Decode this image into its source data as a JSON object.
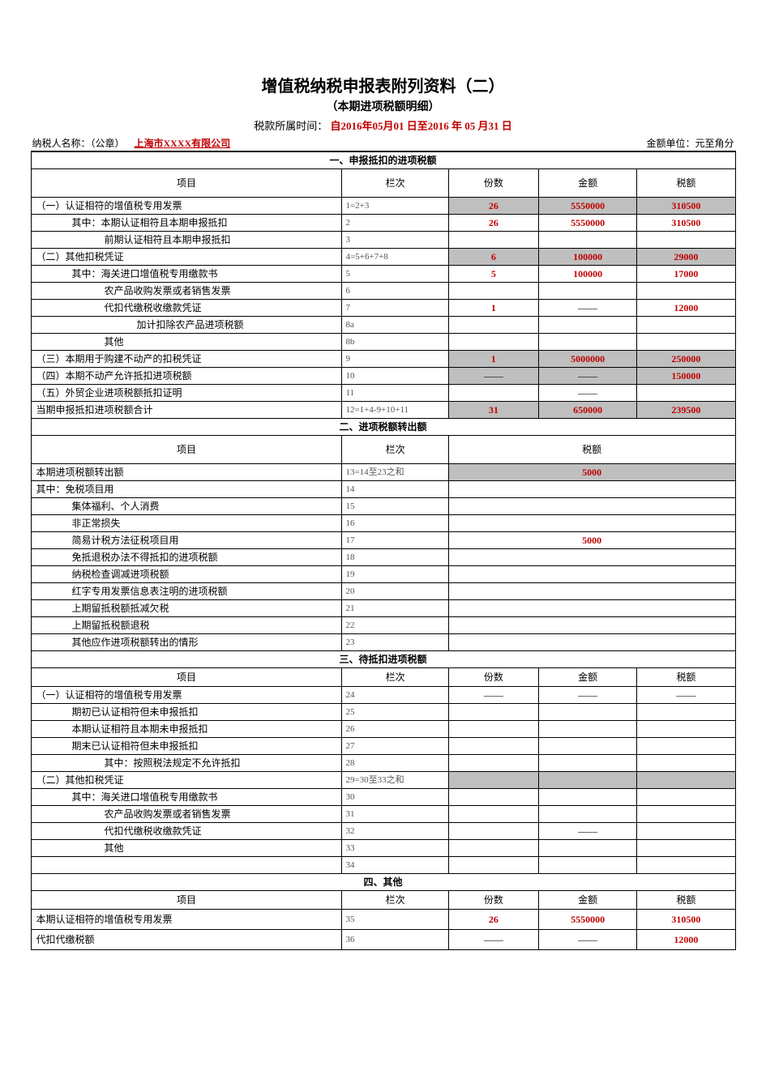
{
  "title": "增值税纳税申报表附列资料（二）",
  "subtitle": "（本期进项税额明细）",
  "period_label": "税款所属时间：",
  "period_value": "自2016年05月01 日至2016 年 05 月31 日",
  "taxpayer_label": "纳税人名称：（公章）",
  "taxpayer_name": "上海市XXXX有限公司",
  "unit_label": "金额单位：元至角分",
  "colors": {
    "red": "#c00000",
    "grey": "#bfbfbf",
    "border": "#000000"
  },
  "col_widths": {
    "item": 380,
    "lanci": 130,
    "fen": 110,
    "jine": 120,
    "shui": 120
  },
  "section1": {
    "title": "一、申报抵扣的进项税额",
    "headers": {
      "item": "项目",
      "lanci": "栏次",
      "fen": "份数",
      "jine": "金额",
      "shui": "税额"
    },
    "rows": [
      {
        "item": "（一）认证相符的增值税专用发票",
        "ind": 0,
        "lanci": "1=2+3",
        "fen": "26",
        "jine": "5550000",
        "shui": "310500",
        "grey": true
      },
      {
        "item": "其中：本期认证相符且本期申报抵扣",
        "ind": 1,
        "lanci": "2",
        "fen": "26",
        "jine": "5550000",
        "shui": "310500"
      },
      {
        "item": "前期认证相符且本期申报抵扣",
        "ind": 2,
        "lanci": "3",
        "fen": "",
        "jine": "",
        "shui": ""
      },
      {
        "item": "（二）其他扣税凭证",
        "ind": 0,
        "lanci": "4=5+6+7+8",
        "fen": "6",
        "jine": "100000",
        "shui": "29000",
        "grey": true
      },
      {
        "item": "其中：海关进口增值税专用缴款书",
        "ind": 1,
        "lanci": "5",
        "fen": "5",
        "jine": "100000",
        "shui": "17000"
      },
      {
        "item": "农产品收购发票或者销售发票",
        "ind": 2,
        "lanci": "6",
        "fen": "",
        "jine": "",
        "shui": ""
      },
      {
        "item": "代扣代缴税收缴款凭证",
        "ind": 2,
        "lanci": "7",
        "fen": "1",
        "jine": "——",
        "shui": "12000",
        "jine_dash": true
      },
      {
        "item": "加计扣除农产品进项税额",
        "ind": 3,
        "lanci": "8a",
        "fen": "",
        "jine": "",
        "shui": ""
      },
      {
        "item": "其他",
        "ind": 2,
        "lanci": "8b",
        "fen": "",
        "jine": "",
        "shui": ""
      },
      {
        "item": "（三）本期用于购建不动产的扣税凭证",
        "ind": 0,
        "lanci": "9",
        "fen": "1",
        "jine": "5000000",
        "shui": "250000",
        "grey": true
      },
      {
        "item": "（四）本期不动产允许抵扣进项税额",
        "ind": 0,
        "lanci": "10",
        "fen": "——",
        "jine": "——",
        "shui": "150000",
        "fen_dash": true,
        "jine_dash": true,
        "grey": true
      },
      {
        "item": "（五）外贸企业进项税额抵扣证明",
        "ind": 0,
        "lanci": "11",
        "fen": "",
        "jine": "——",
        "shui": "",
        "jine_dash": true
      },
      {
        "item": "当期申报抵扣进项税额合计",
        "ind": 0,
        "lanci": "12=1+4-9+10+11",
        "fen": "31",
        "jine": "650000",
        "shui": "239500",
        "grey": true
      }
    ]
  },
  "section2": {
    "title": "二、进项税额转出额",
    "headers": {
      "item": "项目",
      "lanci": "栏次",
      "shui": "税额"
    },
    "rows": [
      {
        "item": "本期进项税额转出额",
        "ind": 0,
        "lanci": "13=14至23之和",
        "shui": "5000",
        "grey": true
      },
      {
        "item": "其中：免税项目用",
        "ind": 0,
        "lanci": "14",
        "shui": ""
      },
      {
        "item": "集体福利、个人消费",
        "ind": 1,
        "lanci": "15",
        "shui": ""
      },
      {
        "item": "非正常损失",
        "ind": 1,
        "lanci": "16",
        "shui": ""
      },
      {
        "item": "简易计税方法征税项目用",
        "ind": 1,
        "lanci": "17",
        "shui": "5000"
      },
      {
        "item": "免抵退税办法不得抵扣的进项税额",
        "ind": 1,
        "lanci": "18",
        "shui": ""
      },
      {
        "item": "纳税检查调减进项税额",
        "ind": 1,
        "lanci": "19",
        "shui": ""
      },
      {
        "item": "红字专用发票信息表注明的进项税额",
        "ind": 1,
        "lanci": "20",
        "shui": ""
      },
      {
        "item": "上期留抵税额抵减欠税",
        "ind": 1,
        "lanci": "21",
        "shui": ""
      },
      {
        "item": "上期留抵税额退税",
        "ind": 1,
        "lanci": "22",
        "shui": ""
      },
      {
        "item": "其他应作进项税额转出的情形",
        "ind": 1,
        "lanci": "23",
        "shui": ""
      }
    ]
  },
  "section3": {
    "title": "三、待抵扣进项税额",
    "headers": {
      "item": "项目",
      "lanci": "栏次",
      "fen": "份数",
      "jine": "金额",
      "shui": "税额"
    },
    "rows": [
      {
        "item": "（一）认证相符的增值税专用发票",
        "ind": 0,
        "lanci": "24",
        "fen": "——",
        "jine": "——",
        "shui": "——",
        "fen_dash": true,
        "jine_dash": true,
        "shui_dash": true
      },
      {
        "item": "期初已认证相符但未申报抵扣",
        "ind": 1,
        "lanci": "25",
        "fen": "",
        "jine": "",
        "shui": ""
      },
      {
        "item": "本期认证相符且本期未申报抵扣",
        "ind": 1,
        "lanci": "26",
        "fen": "",
        "jine": "",
        "shui": ""
      },
      {
        "item": "期末已认证相符但未申报抵扣",
        "ind": 1,
        "lanci": "27",
        "fen": "",
        "jine": "",
        "shui": ""
      },
      {
        "item": "其中：按照税法规定不允许抵扣",
        "ind": 2,
        "lanci": "28",
        "fen": "",
        "jine": "",
        "shui": ""
      },
      {
        "item": "（二）其他扣税凭证",
        "ind": 0,
        "lanci": "29=30至33之和",
        "fen": "",
        "jine": "",
        "shui": "",
        "grey": true
      },
      {
        "item": "其中：海关进口增值税专用缴款书",
        "ind": 1,
        "lanci": "30",
        "fen": "",
        "jine": "",
        "shui": ""
      },
      {
        "item": "农产品收购发票或者销售发票",
        "ind": 2,
        "lanci": "31",
        "fen": "",
        "jine": "",
        "shui": ""
      },
      {
        "item": "代扣代缴税收缴款凭证",
        "ind": 2,
        "lanci": "32",
        "fen": "",
        "jine": "——",
        "shui": "",
        "jine_dash": true
      },
      {
        "item": "其他",
        "ind": 2,
        "lanci": "33",
        "fen": "",
        "jine": "",
        "shui": ""
      },
      {
        "item": "",
        "ind": 0,
        "lanci": "34",
        "fen": "",
        "jine": "",
        "shui": ""
      }
    ]
  },
  "section4": {
    "title": "四、其他",
    "headers": {
      "item": "项目",
      "lanci": "栏次",
      "fen": "份数",
      "jine": "金额",
      "shui": "税额"
    },
    "rows": [
      {
        "item": "本期认证相符的增值税专用发票",
        "ind": 0,
        "lanci": "35",
        "fen": "26",
        "jine": "5550000",
        "shui": "310500",
        "tall": true
      },
      {
        "item": "代扣代缴税额",
        "ind": 0,
        "lanci": "36",
        "fen": "——",
        "jine": "——",
        "shui": "12000",
        "fen_dash": true,
        "jine_dash": true,
        "tall": true
      }
    ]
  }
}
